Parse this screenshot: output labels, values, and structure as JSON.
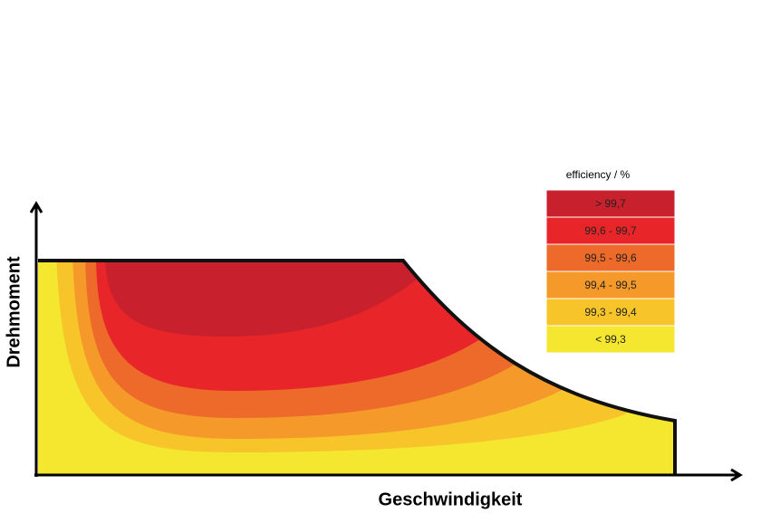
{
  "y_axis_label": "Drehmoment",
  "x_axis_label": "Geschwindigkeit",
  "legend": {
    "title": "efficiency / %",
    "items": [
      {
        "label": "> 99,7",
        "color": "#c8202c"
      },
      {
        "label": "99,6 - 99,7",
        "color": "#e8262a"
      },
      {
        "label": "99,5 - 99,6",
        "color": "#ee6a2a"
      },
      {
        "label": "99,4 - 99,5",
        "color": "#f59a2a"
      },
      {
        "label": "99,3 - 99,4",
        "color": "#f7c52a"
      },
      {
        "label": "< 99,3",
        "color": "#f5e630"
      }
    ]
  }
}
